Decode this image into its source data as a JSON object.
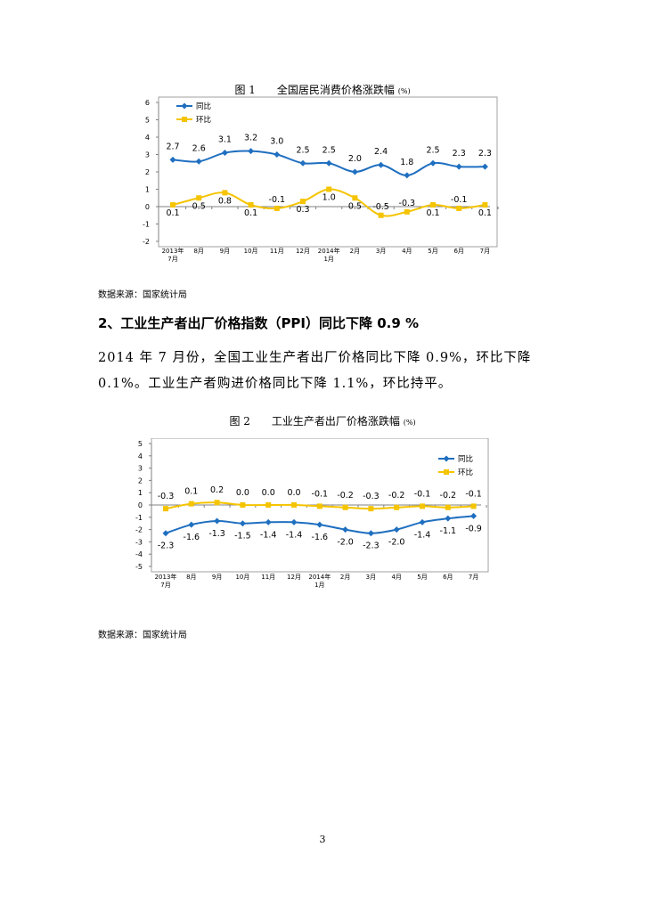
{
  "figure1": {
    "title": "图 1　　全国居民消费价格涨跌幅",
    "unit": "(%)",
    "source": "数据来源：国家统计局"
  },
  "section": {
    "heading": "2、工业生产者出厂价格指数（PPI）同比下降 0.9 %",
    "paragraph": "2014 年 7 月份，全国工业生产者出厂价格同比下降 0.9%，环比下降 0.1%。工业生产者购进价格同比下降 1.1%，环比持平。"
  },
  "figure2": {
    "title": "图 2　　工业生产者出厂价格涨跌幅",
    "unit": "(%)",
    "source": "数据来源：国家统计局"
  },
  "page_number": "3",
  "colors": {
    "yoy": "#1f6fc0",
    "mom": "#f5c400",
    "border": "#a0a0a0"
  },
  "chart_data": [
    {
      "type": "line",
      "categories": [
        [
          "2013年",
          "7月"
        ],
        [
          "8月"
        ],
        [
          "9月"
        ],
        [
          "10月"
        ],
        [
          "11月"
        ],
        [
          "12月"
        ],
        [
          "2014年",
          "1月"
        ],
        [
          "2月"
        ],
        [
          "3月"
        ],
        [
          "4月"
        ],
        [
          "5月"
        ],
        [
          "6月"
        ],
        [
          "7月"
        ]
      ],
      "ylim": [
        -2,
        6
      ],
      "yticks": [
        -2,
        -1,
        0,
        1,
        2,
        3,
        4,
        5,
        6
      ],
      "legend": "top-left",
      "series": [
        {
          "name": "同比",
          "marker": "diamond",
          "values": [
            2.7,
            2.6,
            3.1,
            3.2,
            3.0,
            2.5,
            2.5,
            2.0,
            2.4,
            1.8,
            2.5,
            2.3,
            2.3
          ],
          "labels": [
            "2.7",
            "2.6",
            "3.1",
            "3.2",
            "3.0",
            "2.5",
            "2.5",
            "2.0",
            "2.4",
            "1.8",
            "2.5",
            "2.3",
            "2.3"
          ]
        },
        {
          "name": "环比",
          "marker": "square",
          "values": [
            0.1,
            0.5,
            0.8,
            0.1,
            -0.1,
            0.3,
            1.0,
            0.5,
            -0.5,
            -0.3,
            0.1,
            -0.1,
            0.1
          ],
          "labels": [
            "0.1",
            "0.5",
            "0.8",
            "0.1",
            "-0.1",
            "0.3",
            "1.0",
            "0.5",
            "-0.5",
            "-0.3",
            "0.1",
            "-0.1",
            "0.1"
          ]
        }
      ]
    },
    {
      "type": "line",
      "categories": [
        [
          "2013年",
          "7月"
        ],
        [
          "8月"
        ],
        [
          "9月"
        ],
        [
          "10月"
        ],
        [
          "11月"
        ],
        [
          "12月"
        ],
        [
          "2014年",
          "1月"
        ],
        [
          "2月"
        ],
        [
          "3月"
        ],
        [
          "4月"
        ],
        [
          "5月"
        ],
        [
          "6月"
        ],
        [
          "7月"
        ]
      ],
      "ylim": [
        -5,
        5
      ],
      "yticks": [
        -5,
        -4,
        -3,
        -2,
        -1,
        0,
        1,
        2,
        3,
        4,
        5
      ],
      "legend": "top-right",
      "series": [
        {
          "name": "同比",
          "marker": "diamond",
          "values": [
            -2.3,
            -1.6,
            -1.3,
            -1.5,
            -1.4,
            -1.4,
            -1.6,
            -2.0,
            -2.3,
            -2.0,
            -1.4,
            -1.1,
            -0.9
          ],
          "labels": [
            "-2.3",
            "-1.6",
            "-1.3",
            "-1.5",
            "-1.4",
            "-1.4",
            "-1.6",
            "-2.0",
            "-2.3",
            "-2.0",
            "-1.4",
            "-1.1",
            "-0.9"
          ]
        },
        {
          "name": "环比",
          "marker": "square",
          "values": [
            -0.3,
            0.1,
            0.2,
            0.0,
            0.0,
            0.0,
            -0.1,
            -0.2,
            -0.3,
            -0.2,
            -0.1,
            -0.2,
            -0.1
          ],
          "labels": [
            "-0.3",
            "0.1",
            "0.2",
            "0.0",
            "0.0",
            "0.0",
            "-0.1",
            "-0.2",
            "-0.3",
            "-0.2",
            "-0.1",
            "-0.2",
            "-0.1"
          ]
        }
      ]
    }
  ]
}
